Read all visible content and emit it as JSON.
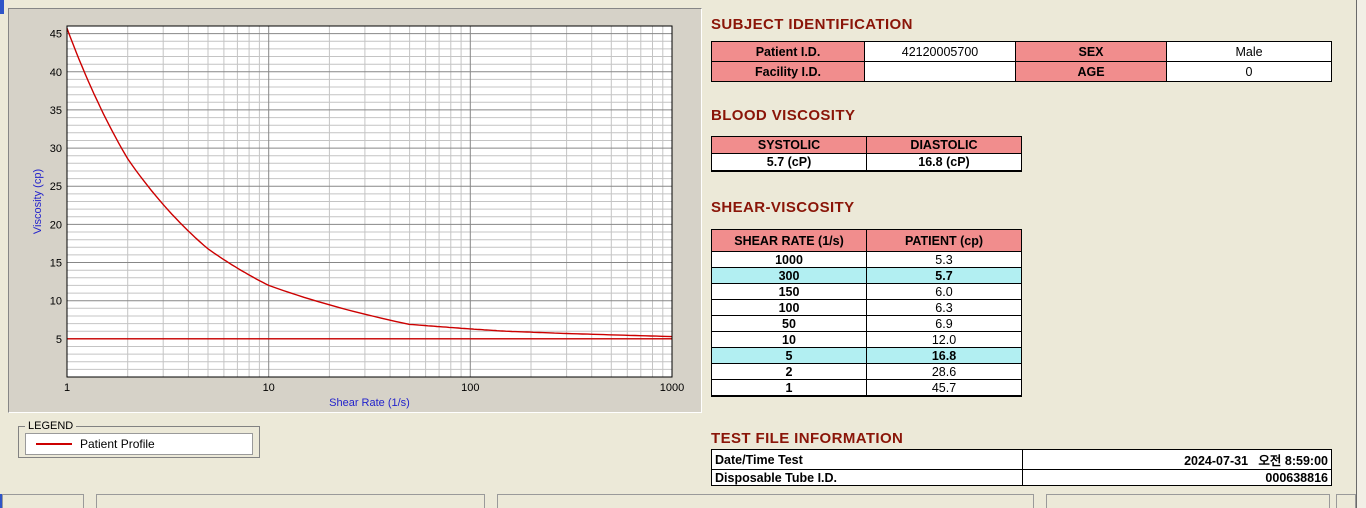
{
  "headings": {
    "subject": "SUBJECT IDENTIFICATION",
    "blood": "BLOOD VISCOSITY",
    "shear": "SHEAR-VISCOSITY",
    "testfile": "TEST FILE INFORMATION"
  },
  "subject_table": {
    "patient_id_label": "Patient I.D.",
    "patient_id_value": "42120005700",
    "sex_label": "SEX",
    "sex_value": "Male",
    "facility_id_label": "Facility I.D.",
    "facility_id_value": "",
    "age_label": "AGE",
    "age_value": "0"
  },
  "blood_table": {
    "systolic_label": "SYSTOLIC",
    "diastolic_label": "DIASTOLIC",
    "systolic_value": "5.7 (cP)",
    "diastolic_value": "16.8 (cP)"
  },
  "shear_table": {
    "col1": "SHEAR RATE (1/s)",
    "col2": "PATIENT (cp)",
    "rows": [
      {
        "rate": "1000",
        "value": "5.3",
        "highlight": false
      },
      {
        "rate": "300",
        "value": "5.7",
        "highlight": true
      },
      {
        "rate": "150",
        "value": "6.0",
        "highlight": false
      },
      {
        "rate": "100",
        "value": "6.3",
        "highlight": false
      },
      {
        "rate": "50",
        "value": "6.9",
        "highlight": false
      },
      {
        "rate": "10",
        "value": "12.0",
        "highlight": false
      },
      {
        "rate": "5",
        "value": "16.8",
        "highlight": true
      },
      {
        "rate": "2",
        "value": "28.6",
        "highlight": false
      },
      {
        "rate": "1",
        "value": "45.7",
        "highlight": false
      }
    ]
  },
  "testfile_table": {
    "date_label": "Date/Time Test",
    "date_value": "2024-07-31   오전 8:59:00",
    "tube_label": "Disposable Tube I.D.",
    "tube_value": "000638816"
  },
  "legend": {
    "title": "LEGEND",
    "series": "Patient Profile"
  },
  "colors": {
    "heading": "#8a1508",
    "table_header_bg": "#f18d8d",
    "highlight_row_bg": "#b2eff2",
    "series_red": "#cc0000",
    "axis_label_blue": "#2222cc"
  },
  "chart_data": {
    "type": "line",
    "title": "",
    "xlabel": "Shear Rate (1/s)",
    "ylabel": "Viscosity (cp)",
    "x_scale": "log",
    "xlim": [
      1,
      1000
    ],
    "ylim": [
      0,
      46
    ],
    "x_ticks": [
      1,
      10,
      100,
      1000
    ],
    "y_ticks": [
      5,
      10,
      15,
      20,
      25,
      30,
      35,
      40,
      45
    ],
    "grid": "on",
    "legend_position": "below-left",
    "series": [
      {
        "name": "Patient Profile",
        "color": "#cc0000",
        "x": [
          1,
          2,
          5,
          10,
          50,
          100,
          150,
          300,
          1000
        ],
        "values": [
          45.7,
          28.6,
          16.8,
          12.0,
          6.9,
          6.3,
          6.0,
          5.7,
          5.3
        ]
      }
    ],
    "reference_line": {
      "value": 5.0,
      "color": "#cc0000"
    }
  }
}
